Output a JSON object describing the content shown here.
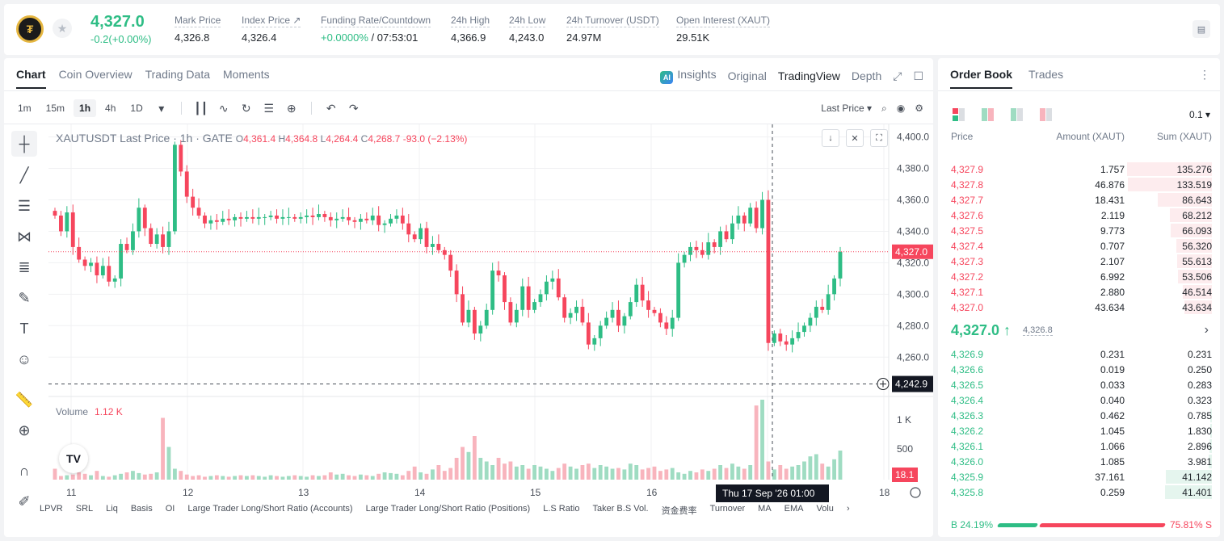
{
  "header": {
    "coin_logo": "tether-gold-logo",
    "last_price": "4,327.0",
    "change": "-0.2(+0.00%)",
    "stats": [
      {
        "label": "Mark Price",
        "value": "4,326.8"
      },
      {
        "label": "Index Price ↗",
        "value": "4,326.4"
      },
      {
        "label": "Funding Rate/Countdown",
        "value_green": "+0.0000%",
        "value": "/ 07:53:01"
      },
      {
        "label": "24h High",
        "value": "4,366.9"
      },
      {
        "label": "24h Low",
        "value": "4,243.0"
      },
      {
        "label": "24h Turnover (USDT)",
        "value": "24.97M"
      },
      {
        "label": "Open Interest (XAUT)",
        "value": "29.51K"
      }
    ]
  },
  "chart_tabs": [
    "Chart",
    "Coin Overview",
    "Trading Data",
    "Moments"
  ],
  "view_tabs": {
    "insights": "Insights",
    "original": "Original",
    "tradingview": "TradingView",
    "depth": "Depth"
  },
  "timeframes": [
    "1m",
    "15m",
    "1h",
    "4h",
    "1D"
  ],
  "active_timeframe": "1h",
  "price_type": "Last Price",
  "legend": {
    "title": "XAUTUSDT Last Price · 1h · GATE",
    "o": "4,361.4",
    "h": "4,364.8",
    "l": "4,264.4",
    "c": "4,268.7",
    "chg": "-93.0 (−2.13%)"
  },
  "volume_legend": {
    "label": "Volume",
    "value": "1.12 K"
  },
  "chart_data": {
    "type": "candlestick",
    "y_ticks": [
      "4,400.0",
      "4,380.0",
      "4,360.0",
      "4,340.0",
      "4,320.0",
      "4,300.0",
      "4,280.0",
      "4,260.0"
    ],
    "y_min": 4236,
    "y_max": 4408,
    "x_ticks": [
      "11",
      "12",
      "13",
      "14",
      "15",
      "16",
      "17",
      "18"
    ],
    "last_price_tag": "4,327.0",
    "last_price_value": 4327.0,
    "crosshair_price_tag": "4,242.9",
    "crosshair_price_value": 4242.9,
    "crosshair_time": "Thu 17 Sep '26   01:00",
    "volume_ticks": [
      "1 K",
      "500"
    ],
    "volume_tag": "18.1",
    "closes": [
      4350,
      4340,
      4352,
      4330,
      4322,
      4318,
      4320,
      4312,
      4318,
      4308,
      4310,
      4332,
      4328,
      4340,
      4355,
      4342,
      4332,
      4338,
      4330,
      4340,
      4395,
      4378,
      4362,
      4355,
      4350,
      4345,
      4347,
      4346,
      4348,
      4347,
      4349,
      4348,
      4349,
      4348,
      4349,
      4349,
      4350,
      4348,
      4349,
      4349,
      4348,
      4349,
      4350,
      4349,
      4351,
      4349,
      4347,
      4348,
      4349,
      4347,
      4346,
      4348,
      4347,
      4350,
      4344,
      4345,
      4348,
      4350,
      4345,
      4338,
      4335,
      4342,
      4330,
      4332,
      4328,
      4325,
      4315,
      4300,
      4282,
      4290,
      4275,
      4280,
      4290,
      4315,
      4312,
      4295,
      4282,
      4290,
      4305,
      4290,
      4295,
      4300,
      4308,
      4310,
      4298,
      4285,
      4288,
      4292,
      4282,
      4268,
      4272,
      4280,
      4285,
      4290,
      4280,
      4286,
      4295,
      4306,
      4296,
      4290,
      4288,
      4282,
      4278,
      4285,
      4320,
      4325,
      4330,
      4328,
      4325,
      4333,
      4330,
      4340,
      4335,
      4345,
      4350,
      4345,
      4355,
      4342,
      4360,
      4269,
      4275,
      4270,
      4268,
      4272,
      4276,
      4280,
      4285,
      4292,
      4290,
      4300,
      4310,
      4327
    ],
    "volumes": [
      0.15,
      0.05,
      0.06,
      0.07,
      0.1,
      0.08,
      0.06,
      0.12,
      0.05,
      0.04,
      0.06,
      0.08,
      0.1,
      0.12,
      0.09,
      0.07,
      0.08,
      0.1,
      0.85,
      0.45,
      0.15,
      0.12,
      0.07,
      0.05,
      0.06,
      0.04,
      0.05,
      0.06,
      0.05,
      0.04,
      0.05,
      0.06,
      0.05,
      0.06,
      0.05,
      0.04,
      0.06,
      0.05,
      0.04,
      0.05,
      0.06,
      0.05,
      0.04,
      0.06,
      0.05,
      0.06,
      0.1,
      0.07,
      0.08,
      0.06,
      0.05,
      0.07,
      0.06,
      0.05,
      0.08,
      0.1,
      0.09,
      0.08,
      0.06,
      0.12,
      0.18,
      0.1,
      0.08,
      0.14,
      0.2,
      0.12,
      0.16,
      0.3,
      0.45,
      0.38,
      0.6,
      0.3,
      0.25,
      0.2,
      0.3,
      0.22,
      0.25,
      0.18,
      0.2,
      0.15,
      0.2,
      0.18,
      0.15,
      0.12,
      0.16,
      0.22,
      0.18,
      0.15,
      0.2,
      0.22,
      0.16,
      0.2,
      0.18,
      0.15,
      0.16,
      0.14,
      0.22,
      0.2,
      0.14,
      0.16,
      0.18,
      0.12,
      0.14,
      0.16,
      0.1,
      0.08,
      0.12,
      0.1,
      0.14,
      0.12,
      0.15,
      0.2,
      0.16,
      0.22,
      0.18,
      0.15,
      0.2,
      1.02,
      1.1,
      0.25,
      0.14,
      0.2,
      0.15,
      0.18,
      0.2,
      0.25,
      0.32,
      0.35,
      0.22,
      0.18,
      0.28,
      0.4
    ]
  },
  "indicators": [
    "LPVR",
    "SRL",
    "Liq",
    "Basis",
    "OI",
    "Large Trader Long/Short Ratio (Accounts)",
    "Large Trader Long/Short Ratio (Positions)",
    "L.S Ratio",
    "Taker B.S Vol.",
    "资金费率",
    "Turnover",
    "MA",
    "EMA",
    "Volu"
  ],
  "orderbook": {
    "tabs": [
      "Order Book",
      "Trades"
    ],
    "precision": "0.1 ▾",
    "columns": [
      "Price",
      "Amount (XAUT)",
      "Sum (XAUT)"
    ],
    "asks": [
      {
        "price": "4,327.9",
        "amount": "1.757",
        "sum": "135.276",
        "depth": 1.0
      },
      {
        "price": "4,327.8",
        "amount": "46.876",
        "sum": "133.519",
        "depth": 0.99
      },
      {
        "price": "4,327.7",
        "amount": "18.431",
        "sum": "86.643",
        "depth": 0.64
      },
      {
        "price": "4,327.6",
        "amount": "2.119",
        "sum": "68.212",
        "depth": 0.5
      },
      {
        "price": "4,327.5",
        "amount": "9.773",
        "sum": "66.093",
        "depth": 0.49
      },
      {
        "price": "4,327.4",
        "amount": "0.707",
        "sum": "56.320",
        "depth": 0.42
      },
      {
        "price": "4,327.3",
        "amount": "2.107",
        "sum": "55.613",
        "depth": 0.41
      },
      {
        "price": "4,327.2",
        "amount": "6.992",
        "sum": "53.506",
        "depth": 0.4
      },
      {
        "price": "4,327.1",
        "amount": "2.880",
        "sum": "46.514",
        "depth": 0.34
      },
      {
        "price": "4,327.0",
        "amount": "43.634",
        "sum": "43.634",
        "depth": 0.32
      }
    ],
    "mid_price": "4,327.0 ↑",
    "mark_price": "4,326.8",
    "bids": [
      {
        "price": "4,326.9",
        "amount": "0.231",
        "sum": "0.231",
        "depth": 0.0
      },
      {
        "price": "4,326.6",
        "amount": "0.019",
        "sum": "0.250",
        "depth": 0.0
      },
      {
        "price": "4,326.5",
        "amount": "0.033",
        "sum": "0.283",
        "depth": 0.0
      },
      {
        "price": "4,326.4",
        "amount": "0.040",
        "sum": "0.323",
        "depth": 0.0
      },
      {
        "price": "4,326.3",
        "amount": "0.462",
        "sum": "0.785",
        "depth": 0.01
      },
      {
        "price": "4,326.2",
        "amount": "1.045",
        "sum": "1.830",
        "depth": 0.02
      },
      {
        "price": "4,326.1",
        "amount": "1.066",
        "sum": "2.896",
        "depth": 0.03
      },
      {
        "price": "4,326.0",
        "amount": "1.085",
        "sum": "3.981",
        "depth": 0.04
      },
      {
        "price": "4,325.9",
        "amount": "37.161",
        "sum": "41.142",
        "depth": 0.54
      },
      {
        "price": "4,325.8",
        "amount": "0.259",
        "sum": "41.401",
        "depth": 0.55
      }
    ],
    "buy_ratio": "B 24.19%",
    "sell_ratio": "75.81% S",
    "buy_fraction": 0.2419
  }
}
